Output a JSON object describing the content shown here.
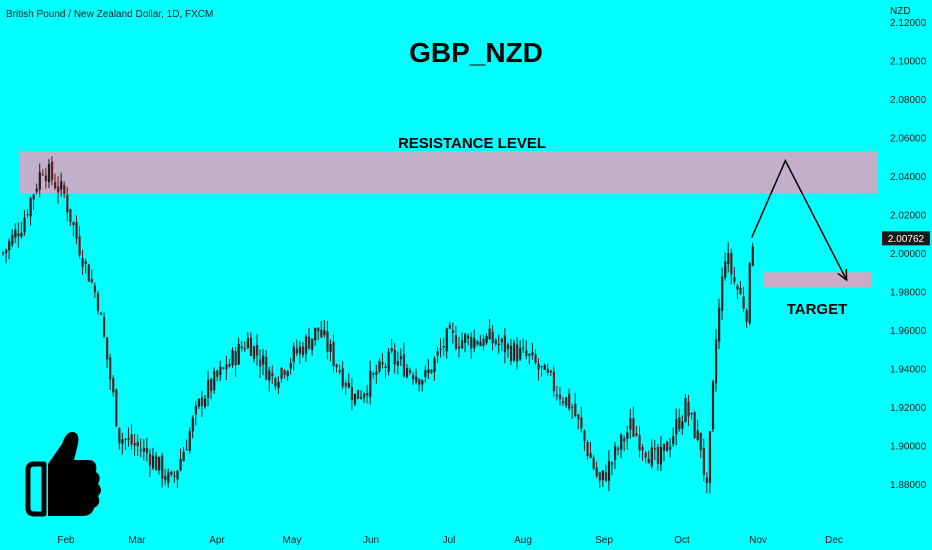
{
  "header": {
    "symbol_info": "British Pound / New Zealand Dollar, 1D, FXCM",
    "currency": "NZD"
  },
  "colors": {
    "background": "#00ffff",
    "zone": "#d7a6c4",
    "candle_up": "#1c1c1c",
    "candle_down": "#5c1e1e",
    "price_tag": "#1a1a1a"
  },
  "icons": {
    "thumbs_up": "thumbs-up-icon"
  },
  "chart_data": {
    "type": "candlestick",
    "title": "GBP_NZD",
    "y_ticks": [
      "2.12000",
      "2.10000",
      "2.08000",
      "2.06000",
      "2.04000",
      "2.02000",
      "2.00000",
      "1.98000",
      "1.96000",
      "1.94000",
      "1.92000",
      "1.90000",
      "1.88000"
    ],
    "x_ticks": [
      "Feb",
      "Mar",
      "Apr",
      "May",
      "Jun",
      "Jul",
      "Aug",
      "Sep",
      "Oct",
      "Nov",
      "Dec"
    ],
    "ylim": [
      1.86,
      2.125
    ],
    "current_price": "2.00762",
    "current_value": 2.00762,
    "price_path": [
      [
        0,
        2.0
      ],
      [
        6,
        2.015
      ],
      [
        13,
        2.045
      ],
      [
        20,
        2.03
      ],
      [
        24,
        2.008
      ],
      [
        31,
        1.975
      ],
      [
        38,
        1.905
      ],
      [
        48,
        1.895
      ],
      [
        55,
        1.88
      ],
      [
        65,
        1.925
      ],
      [
        80,
        1.955
      ],
      [
        88,
        1.935
      ],
      [
        103,
        1.96
      ],
      [
        115,
        1.925
      ],
      [
        127,
        1.945
      ],
      [
        138,
        1.935
      ],
      [
        145,
        1.955
      ],
      [
        159,
        1.955
      ],
      [
        172,
        1.945
      ],
      [
        186,
        1.92
      ],
      [
        195,
        1.88
      ],
      [
        205,
        1.91
      ],
      [
        214,
        1.89
      ],
      [
        223,
        1.92
      ],
      [
        228,
        1.9
      ],
      [
        230,
        1.875
      ],
      [
        233,
        1.955
      ],
      [
        236,
        2.0
      ],
      [
        239,
        1.985
      ],
      [
        243,
        1.97
      ],
      [
        245,
        2.008
      ]
    ],
    "annotations": [
      {
        "type": "zone",
        "label": "RESISTANCE LEVEL",
        "y_from": 2.031,
        "y_to": 2.053
      },
      {
        "type": "zone",
        "label": "TARGET",
        "y_from": 1.982,
        "y_to": 1.99
      },
      {
        "type": "path",
        "label": "",
        "points": [
          [
            245,
            2.008
          ],
          [
            256,
            2.048
          ],
          [
            276,
            1.986
          ]
        ]
      }
    ]
  }
}
